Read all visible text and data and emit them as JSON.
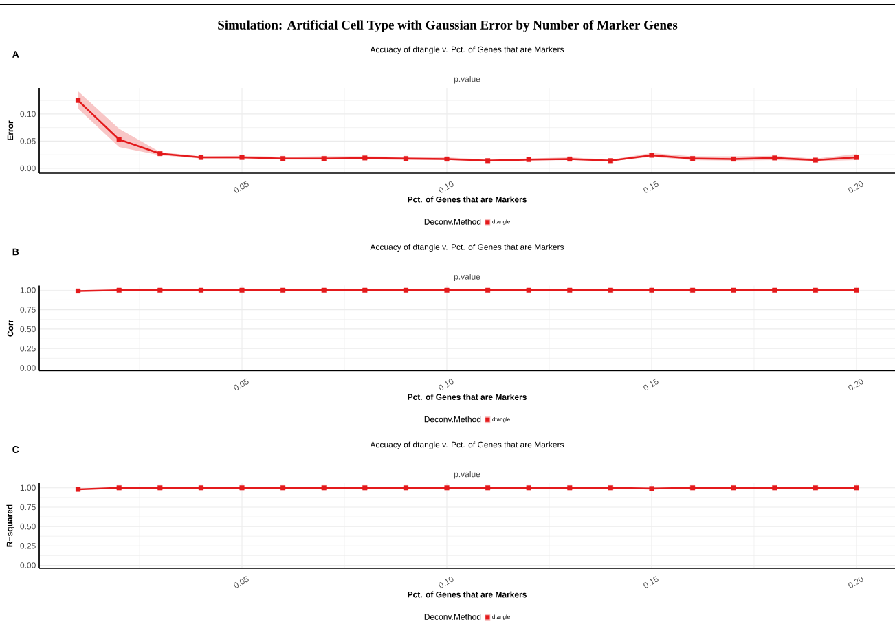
{
  "chart_data": [
    {
      "type": "line",
      "title": "Simulation: Artificial Cell Type with Gaussian Error by Number of Marker Genes",
      "subtitle": "Accuacy of dtangle v. Pct. of Genes that are Markers",
      "xlabel": "Pct. of Genes that are Markers",
      "ylabel": "Error",
      "legend_title": "Deconv.Method",
      "annotations": [
        "A",
        "p.value"
      ],
      "x": [
        0.01,
        0.02,
        0.03,
        0.04,
        0.05,
        0.06,
        0.07,
        0.08,
        0.09,
        0.1,
        0.11,
        0.12,
        0.13,
        0.14,
        0.15,
        0.16,
        0.17,
        0.18,
        0.19,
        0.2
      ],
      "series": [
        {
          "name": "dtangle",
          "color": "#e41a1c",
          "values": [
            0.125,
            0.053,
            0.027,
            0.02,
            0.02,
            0.018,
            0.018,
            0.019,
            0.018,
            0.017,
            0.014,
            0.016,
            0.017,
            0.014,
            0.024,
            0.018,
            0.017,
            0.019,
            0.015,
            0.02
          ],
          "lower": [
            0.11,
            0.039,
            0.024,
            0.018,
            0.018,
            0.016,
            0.016,
            0.017,
            0.015,
            0.015,
            0.013,
            0.014,
            0.015,
            0.013,
            0.021,
            0.015,
            0.014,
            0.015,
            0.013,
            0.015
          ],
          "upper": [
            0.142,
            0.073,
            0.03,
            0.022,
            0.023,
            0.021,
            0.022,
            0.022,
            0.021,
            0.02,
            0.016,
            0.018,
            0.02,
            0.016,
            0.028,
            0.022,
            0.022,
            0.023,
            0.018,
            0.026
          ]
        }
      ],
      "xlim": [
        0.0005,
        0.2094
      ],
      "ylim": [
        -0.009,
        0.148
      ],
      "xticks": [
        {
          "value": 0.05,
          "label": "0.05"
        },
        {
          "value": 0.1,
          "label": "0.10"
        },
        {
          "value": 0.15,
          "label": "0.15"
        },
        {
          "value": 0.2,
          "label": "0.20"
        }
      ],
      "yticks": [
        {
          "value": 0,
          "label": "0.00"
        },
        {
          "value": 0.05,
          "label": "0.05"
        },
        {
          "value": 0.1,
          "label": "0.10"
        }
      ],
      "grid": true,
      "legend": "bottom",
      "marker": "square"
    },
    {
      "type": "line",
      "subtitle": "Accuacy of dtangle v. Pct. of Genes that are Markers",
      "xlabel": "Pct. of Genes that are Markers",
      "ylabel": "Corr",
      "legend_title": "Deconv.Method",
      "annotations": [
        "B",
        "p.value"
      ],
      "x": [
        0.01,
        0.02,
        0.03,
        0.04,
        0.05,
        0.06,
        0.07,
        0.08,
        0.09,
        0.1,
        0.11,
        0.12,
        0.13,
        0.14,
        0.15,
        0.16,
        0.17,
        0.18,
        0.19,
        0.2
      ],
      "series": [
        {
          "name": "dtangle",
          "color": "#e41a1c",
          "values": [
            0.99,
            1.0,
            1.0,
            1.0,
            1.0,
            1.0,
            1.0,
            1.0,
            1.0,
            1.0,
            1.0,
            1.0,
            1.0,
            1.0,
            1.0,
            1.0,
            1.0,
            1.0,
            1.0,
            1.0
          ]
        }
      ],
      "xlim": [
        0.0005,
        0.2094
      ],
      "ylim": [
        -0.035,
        1.06
      ],
      "xticks": [
        {
          "value": 0.05,
          "label": "0.05"
        },
        {
          "value": 0.1,
          "label": "0.10"
        },
        {
          "value": 0.15,
          "label": "0.15"
        },
        {
          "value": 0.2,
          "label": "0.20"
        }
      ],
      "yticks": [
        {
          "value": 0,
          "label": "0.00"
        },
        {
          "value": 0.25,
          "label": "0.25"
        },
        {
          "value": 0.5,
          "label": "0.50"
        },
        {
          "value": 0.75,
          "label": "0.75"
        },
        {
          "value": 1,
          "label": "1.00"
        }
      ],
      "grid": true,
      "legend": "bottom",
      "marker": "square"
    },
    {
      "type": "line",
      "subtitle": "Accuacy of dtangle v. Pct. of Genes that are Markers",
      "xlabel": "Pct. of Genes that are Markers",
      "ylabel": "R−squared",
      "legend_title": "Deconv.Method",
      "annotations": [
        "C",
        "p.value"
      ],
      "x": [
        0.01,
        0.02,
        0.03,
        0.04,
        0.05,
        0.06,
        0.07,
        0.08,
        0.09,
        0.1,
        0.11,
        0.12,
        0.13,
        0.14,
        0.15,
        0.16,
        0.17,
        0.18,
        0.19,
        0.2
      ],
      "series": [
        {
          "name": "dtangle",
          "color": "#e41a1c",
          "values": [
            0.98,
            1.0,
            1.0,
            1.0,
            1.0,
            1.0,
            1.0,
            1.0,
            1.0,
            1.0,
            1.0,
            1.0,
            1.0,
            1.0,
            0.99,
            1.0,
            1.0,
            1.0,
            1.0,
            1.0
          ]
        }
      ],
      "xlim": [
        0.0005,
        0.2094
      ],
      "ylim": [
        -0.04,
        1.06
      ],
      "xticks": [
        {
          "value": 0.05,
          "label": "0.05"
        },
        {
          "value": 0.1,
          "label": "0.10"
        },
        {
          "value": 0.15,
          "label": "0.15"
        },
        {
          "value": 0.2,
          "label": "0.20"
        }
      ],
      "yticks": [
        {
          "value": 0,
          "label": "0.00"
        },
        {
          "value": 0.25,
          "label": "0.25"
        },
        {
          "value": 0.5,
          "label": "0.50"
        },
        {
          "value": 0.75,
          "label": "0.75"
        },
        {
          "value": 1,
          "label": "1.00"
        }
      ],
      "grid": true,
      "legend": "bottom",
      "marker": "square"
    }
  ]
}
